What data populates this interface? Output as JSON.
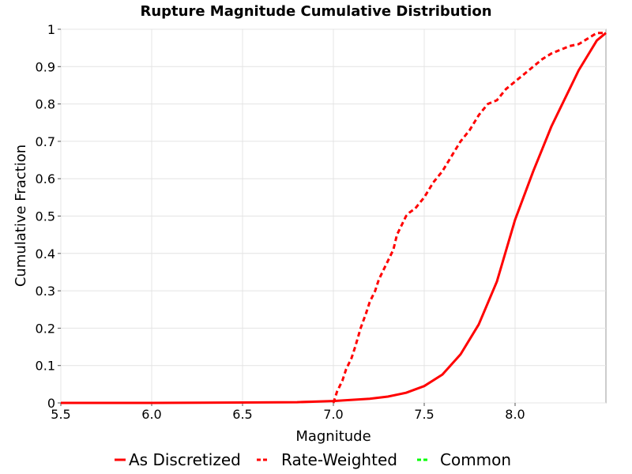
{
  "chart_data": {
    "type": "line",
    "title": "Rupture Magnitude Cumulative Distribution",
    "xlabel": "Magnitude",
    "ylabel": "Cumulative Fraction",
    "xlim": [
      5.5,
      8.5
    ],
    "ylim": [
      0,
      1
    ],
    "xticks": [
      5.5,
      6.0,
      6.5,
      7.0,
      7.5,
      8.0
    ],
    "xtick_labels": [
      "5.5",
      "6.0",
      "6.5",
      "7.0",
      "7.5",
      "8.0"
    ],
    "yticks": [
      0,
      0.1,
      0.2,
      0.3,
      0.4,
      0.5,
      0.6,
      0.7,
      0.8,
      0.9,
      1
    ],
    "ytick_labels": [
      "0",
      "0.1",
      "0.2",
      "0.3",
      "0.4",
      "0.5",
      "0.6",
      "0.7",
      "0.8",
      "0.9",
      "1"
    ],
    "grid": true,
    "legend_position": "bottom",
    "series": [
      {
        "name": "As Discretized",
        "color": "#ff0000",
        "style": "solid",
        "x": [
          5.5,
          6.0,
          6.5,
          6.8,
          7.0,
          7.2,
          7.3,
          7.4,
          7.5,
          7.6,
          7.7,
          7.8,
          7.9,
          8.0,
          8.1,
          8.15,
          8.2,
          8.25,
          8.3,
          8.35,
          8.4,
          8.45,
          8.5
        ],
        "y": [
          0.0,
          0.0,
          0.001,
          0.002,
          0.005,
          0.011,
          0.017,
          0.027,
          0.045,
          0.076,
          0.13,
          0.21,
          0.325,
          0.49,
          0.62,
          0.68,
          0.74,
          0.79,
          0.84,
          0.89,
          0.93,
          0.97,
          0.99
        ]
      },
      {
        "name": "Rate-Weighted",
        "color": "#ff0000",
        "style": "dashed",
        "x": [
          7.0,
          7.02,
          7.05,
          7.07,
          7.1,
          7.12,
          7.15,
          7.18,
          7.2,
          7.23,
          7.25,
          7.28,
          7.3,
          7.33,
          7.35,
          7.38,
          7.4,
          7.42,
          7.45,
          7.5,
          7.55,
          7.6,
          7.65,
          7.7,
          7.75,
          7.8,
          7.85,
          7.9,
          7.95,
          8.0,
          8.05,
          8.1,
          8.15,
          8.2,
          8.25,
          8.3,
          8.35,
          8.4,
          8.45,
          8.5
        ],
        "y": [
          0.0,
          0.03,
          0.06,
          0.09,
          0.12,
          0.15,
          0.2,
          0.24,
          0.27,
          0.3,
          0.33,
          0.36,
          0.38,
          0.41,
          0.45,
          0.48,
          0.5,
          0.51,
          0.52,
          0.55,
          0.59,
          0.62,
          0.66,
          0.7,
          0.73,
          0.77,
          0.8,
          0.81,
          0.84,
          0.86,
          0.88,
          0.9,
          0.92,
          0.935,
          0.945,
          0.955,
          0.96,
          0.975,
          0.99,
          0.99
        ]
      },
      {
        "name": "Common",
        "color": "#00ff00",
        "style": "dashed",
        "x": [],
        "y": []
      }
    ]
  }
}
